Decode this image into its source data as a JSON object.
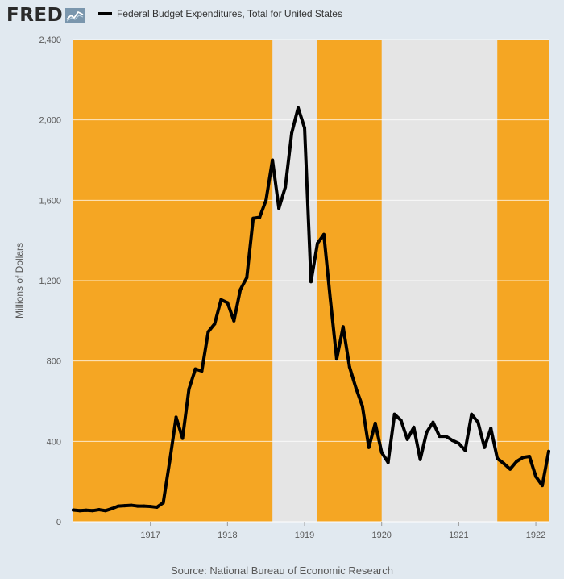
{
  "header": {
    "logo_text": "FRED",
    "logo_icon": "chart-line-icon",
    "legend_label": "Federal Budget Expenditures, Total for United States"
  },
  "footer": {
    "source": "Source: National Bureau of Economic Research"
  },
  "colors": {
    "background": "#e1e9f0",
    "plot_background": "#e5e5e5",
    "shading": "#f5a623",
    "line": "#000000",
    "gridline": "#ffffff"
  },
  "chart_data": {
    "type": "line",
    "title": "",
    "xlabel": "",
    "ylabel": "Millions of Dollars",
    "ylim": [
      0,
      2400
    ],
    "yticks": [
      0,
      400,
      800,
      1200,
      1600,
      2000,
      2400
    ],
    "ytick_labels": [
      "0",
      "400",
      "800",
      "1,200",
      "1,600",
      "2,000",
      "2,400"
    ],
    "xlim": [
      "1916-01",
      "1922-03"
    ],
    "xticks": [
      "1917-01",
      "1918-01",
      "1919-01",
      "1920-01",
      "1921-01",
      "1922-01"
    ],
    "xtick_labels": [
      "1917",
      "1918",
      "1919",
      "1920",
      "1921",
      "1922"
    ],
    "grid": true,
    "legend": "top-left",
    "shaded_periods": [
      {
        "start": "1916-01",
        "end": "1918-08"
      },
      {
        "start": "1919-03",
        "end": "1920-01"
      },
      {
        "start": "1921-07",
        "end": "1922-03"
      }
    ],
    "series": [
      {
        "name": "Federal Budget Expenditures, Total for United States",
        "x": [
          "1916-01",
          "1916-02",
          "1916-03",
          "1916-04",
          "1916-05",
          "1916-06",
          "1916-07",
          "1916-08",
          "1916-09",
          "1916-10",
          "1916-11",
          "1916-12",
          "1917-01",
          "1917-02",
          "1917-03",
          "1917-04",
          "1917-05",
          "1917-06",
          "1917-07",
          "1917-08",
          "1917-09",
          "1917-10",
          "1917-11",
          "1917-12",
          "1918-01",
          "1918-02",
          "1918-03",
          "1918-04",
          "1918-05",
          "1918-06",
          "1918-07",
          "1918-08",
          "1918-09",
          "1918-10",
          "1918-11",
          "1918-12",
          "1919-01",
          "1919-02",
          "1919-03",
          "1919-04",
          "1919-05",
          "1919-06",
          "1919-07",
          "1919-08",
          "1919-09",
          "1919-10",
          "1919-11",
          "1919-12",
          "1920-01",
          "1920-02",
          "1920-03",
          "1920-04",
          "1920-05",
          "1920-06",
          "1920-07",
          "1920-08",
          "1920-09",
          "1920-10",
          "1920-11",
          "1920-12",
          "1921-01",
          "1921-02",
          "1921-03",
          "1921-04",
          "1921-05",
          "1921-06",
          "1921-07",
          "1921-08",
          "1921-09",
          "1921-10",
          "1921-11",
          "1921-12",
          "1922-01",
          "1922-02",
          "1922-03"
        ],
        "values": [
          58,
          55,
          57,
          55,
          60,
          55,
          65,
          78,
          80,
          82,
          78,
          78,
          76,
          72,
          95,
          300,
          520,
          415,
          660,
          760,
          750,
          945,
          985,
          1105,
          1090,
          1000,
          1155,
          1215,
          1510,
          1515,
          1600,
          1800,
          1560,
          1665,
          1935,
          2060,
          1960,
          1195,
          1385,
          1430,
          1110,
          810,
          970,
          770,
          665,
          575,
          370,
          490,
          345,
          295,
          535,
          505,
          410,
          470,
          310,
          445,
          495,
          425,
          425,
          405,
          390,
          355,
          535,
          495,
          370,
          465,
          315,
          290,
          262,
          300,
          320,
          325,
          225,
          180,
          350
        ]
      }
    ]
  }
}
